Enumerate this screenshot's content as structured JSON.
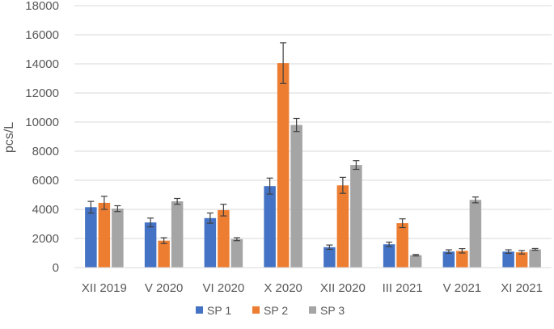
{
  "chart_data": {
    "type": "bar",
    "title": "",
    "xlabel": "",
    "ylabel": "pcs/L",
    "ylim": [
      0,
      18000
    ],
    "yticks": [
      0,
      2000,
      4000,
      6000,
      8000,
      10000,
      12000,
      14000,
      16000,
      18000
    ],
    "grid": true,
    "legend_position": "bottom",
    "categories": [
      "XII 2019",
      "V 2020",
      "VI 2020",
      "X 2020",
      "XII 2020",
      "III 2021",
      "V 2021",
      "XI 2021"
    ],
    "series": [
      {
        "name": "SP 1",
        "color": "#4472C4",
        "values": [
          4150,
          3100,
          3400,
          5600,
          1400,
          1600,
          1100,
          1100
        ],
        "errors": [
          400,
          300,
          350,
          550,
          150,
          150,
          120,
          120
        ]
      },
      {
        "name": "SP 2",
        "color": "#ED7D31",
        "values": [
          4450,
          1850,
          3950,
          14050,
          5650,
          3050,
          1150,
          1050
        ],
        "errors": [
          450,
          200,
          400,
          1400,
          550,
          300,
          150,
          120
        ]
      },
      {
        "name": "SP 3",
        "color": "#A5A5A5",
        "values": [
          4050,
          4550,
          1950,
          9800,
          7050,
          850,
          4650,
          1250
        ],
        "errors": [
          200,
          200,
          100,
          450,
          300,
          50,
          200,
          60
        ]
      }
    ]
  }
}
